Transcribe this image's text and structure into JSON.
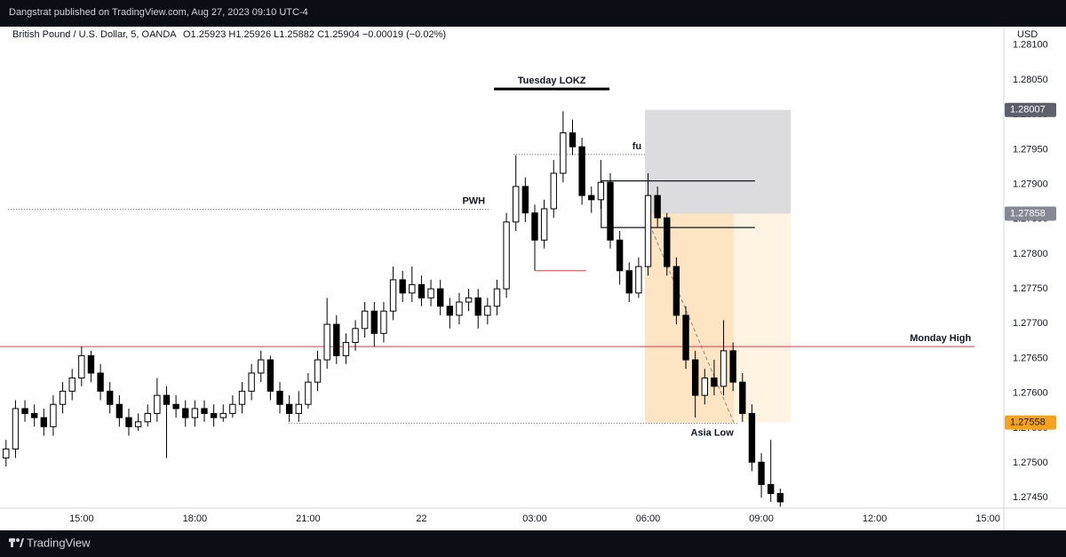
{
  "header": {
    "publisher": "Dangstrat published on TradingView.com, Aug 27, 2023 09:10 UTC-4"
  },
  "footer": {
    "brand": "TradingView"
  },
  "chart_data": {
    "type": "candlestick",
    "title": "British Pound / U.S. Dollar, 5, OANDA",
    "ohlc_legend": "O1.25923 H1.25926 L1.25882 C1.25904 −0.00019 (−0.02%)",
    "currency": "USD",
    "up_color": "#ffffff",
    "down_color": "#000000",
    "grid": false,
    "xlim": [
      12.84,
      39.42
    ],
    "ylim": [
      1.27435,
      1.28124
    ],
    "xticks": [
      {
        "value": 15,
        "label": "15:00"
      },
      {
        "value": 18,
        "label": "18:00"
      },
      {
        "value": 21,
        "label": "21:00"
      },
      {
        "value": 24,
        "label": "22"
      },
      {
        "value": 27,
        "label": "03:00"
      },
      {
        "value": 30,
        "label": "06:00"
      },
      {
        "value": 33,
        "label": "09:00"
      },
      {
        "value": 36,
        "label": "12:00"
      },
      {
        "value": 39,
        "label": "15:00"
      }
    ],
    "yticks": [
      {
        "value": 1.2745,
        "label": "1.27450"
      },
      {
        "value": 1.275,
        "label": "1.27500"
      },
      {
        "value": 1.2755,
        "label": "1.27550"
      },
      {
        "value": 1.276,
        "label": "1.27600"
      },
      {
        "value": 1.2765,
        "label": "1.27650"
      },
      {
        "value": 1.277,
        "label": "1.27700"
      },
      {
        "value": 1.2775,
        "label": "1.27750"
      },
      {
        "value": 1.278,
        "label": "1.27800"
      },
      {
        "value": 1.2785,
        "label": "1.27850"
      },
      {
        "value": 1.279,
        "label": "1.27900"
      },
      {
        "value": 1.2795,
        "label": "1.27950"
      },
      {
        "value": 1.28,
        "label": "1.28000"
      },
      {
        "value": 1.2805,
        "label": "1.28050"
      },
      {
        "value": 1.281,
        "label": "1.28100"
      }
    ],
    "x": [
      13,
      13.25,
      13.5,
      13.75,
      14,
      14.25,
      14.5,
      14.75,
      15,
      15.25,
      15.5,
      15.75,
      16,
      16.25,
      16.5,
      16.75,
      17,
      17.25,
      17.5,
      17.75,
      18,
      18.25,
      18.5,
      18.75,
      19,
      19.25,
      19.5,
      19.75,
      20,
      20.25,
      20.5,
      20.75,
      21,
      21.25,
      21.5,
      21.75,
      22,
      22.25,
      22.5,
      22.75,
      23,
      23.25,
      23.5,
      23.75,
      24,
      24.25,
      24.5,
      24.75,
      25,
      25.25,
      25.5,
      25.75,
      26,
      26.25,
      26.5,
      26.75,
      27,
      27.25,
      27.5,
      27.75,
      28,
      28.25,
      28.5,
      28.75,
      29,
      29.25,
      29.5,
      29.75,
      30,
      30.25,
      30.5,
      30.75,
      31,
      31.25,
      31.5,
      31.75,
      32,
      32.25,
      32.5,
      32.75,
      33,
      33.25,
      33.5
    ],
    "open": [
      1.27507,
      1.2752,
      1.27578,
      1.27571,
      1.27565,
      1.27552,
      1.27584,
      1.27603,
      1.27622,
      1.27654,
      1.27629,
      1.27603,
      1.27584,
      1.27565,
      1.27552,
      1.27559,
      1.27571,
      1.27597,
      1.27584,
      1.27578,
      1.27565,
      1.27578,
      1.27571,
      1.27565,
      1.27571,
      1.27584,
      1.27603,
      1.27629,
      1.27648,
      1.27603,
      1.27584,
      1.27571,
      1.27584,
      1.27616,
      1.27648,
      1.27699,
      1.27654,
      1.27673,
      1.27693,
      1.27718,
      1.27686,
      1.27718,
      1.27763,
      1.27744,
      1.27756,
      1.27737,
      1.2775,
      1.27725,
      1.27712,
      1.27731,
      1.27737,
      1.27712,
      1.27725,
      1.2775,
      1.27846,
      1.27897,
      1.27859,
      1.2782,
      1.27865,
      1.27916,
      1.27974,
      1.27954,
      1.27884,
      1.27878,
      1.27903,
      1.2782,
      1.27776,
      1.27744,
      1.27782,
      1.27884,
      1.27852,
      1.27782,
      1.27712,
      1.27648,
      1.27597,
      1.27622,
      1.2761,
      1.27661,
      1.27616,
      1.27571,
      1.27501,
      1.27469,
      1.27456
    ],
    "high": [
      1.27533,
      1.2759,
      1.2759,
      1.27584,
      1.27578,
      1.27597,
      1.27616,
      1.27635,
      1.27667,
      1.27661,
      1.27642,
      1.27616,
      1.27597,
      1.27578,
      1.27571,
      1.27584,
      1.27622,
      1.2761,
      1.27597,
      1.2759,
      1.2759,
      1.2759,
      1.27584,
      1.27584,
      1.27597,
      1.27616,
      1.27642,
      1.27661,
      1.27654,
      1.27616,
      1.27597,
      1.27603,
      1.27629,
      1.27661,
      1.27737,
      1.27712,
      1.27686,
      1.27705,
      1.27731,
      1.27731,
      1.27731,
      1.27782,
      1.27776,
      1.27782,
      1.27769,
      1.27763,
      1.27763,
      1.27737,
      1.27744,
      1.2775,
      1.2775,
      1.27737,
      1.27763,
      1.27859,
      1.27942,
      1.2791,
      1.27871,
      1.27878,
      1.27935,
      1.28005,
      1.27993,
      1.27967,
      1.27897,
      1.27935,
      1.27916,
      1.27833,
      1.27788,
      1.27795,
      1.27916,
      1.27897,
      1.27859,
      1.27795,
      1.27725,
      1.27661,
      1.27635,
      1.27648,
      1.27705,
      1.27673,
      1.27629,
      1.27584,
      1.27514,
      1.27533,
      1.27463
    ],
    "low": [
      1.27495,
      1.27507,
      1.27559,
      1.27552,
      1.27539,
      1.27539,
      1.27571,
      1.2759,
      1.2761,
      1.27616,
      1.2759,
      1.27571,
      1.27552,
      1.27539,
      1.27546,
      1.27552,
      1.27559,
      1.27507,
      1.27565,
      1.27552,
      1.27552,
      1.27559,
      1.27552,
      1.27559,
      1.27565,
      1.27571,
      1.2759,
      1.27616,
      1.2759,
      1.27571,
      1.27559,
      1.27559,
      1.27578,
      1.27603,
      1.27635,
      1.27642,
      1.27642,
      1.27661,
      1.2768,
      1.27667,
      1.27673,
      1.27705,
      1.27731,
      1.27731,
      1.27725,
      1.27725,
      1.27712,
      1.27693,
      1.27699,
      1.27718,
      1.27693,
      1.27699,
      1.27712,
      1.27737,
      1.27833,
      1.27846,
      1.27776,
      1.27808,
      1.27852,
      1.27903,
      1.27942,
      1.27871,
      1.27859,
      1.27865,
      1.27808,
      1.27756,
      1.27731,
      1.27737,
      1.27769,
      1.27839,
      1.27769,
      1.27699,
      1.27635,
      1.27565,
      1.27584,
      1.27597,
      1.27597,
      1.27603,
      1.27559,
      1.27488,
      1.2745,
      1.27444,
      1.27437
    ],
    "close": [
      1.2752,
      1.27578,
      1.27571,
      1.27565,
      1.27552,
      1.27584,
      1.27603,
      1.27622,
      1.27654,
      1.27629,
      1.27603,
      1.27584,
      1.27565,
      1.27552,
      1.27559,
      1.27571,
      1.27597,
      1.27584,
      1.27578,
      1.27565,
      1.27578,
      1.27571,
      1.27565,
      1.27571,
      1.27584,
      1.27603,
      1.27629,
      1.27648,
      1.27603,
      1.27584,
      1.27571,
      1.27584,
      1.27616,
      1.27648,
      1.27699,
      1.27654,
      1.27673,
      1.27693,
      1.27718,
      1.27686,
      1.27718,
      1.27763,
      1.27744,
      1.27756,
      1.27737,
      1.2775,
      1.27725,
      1.27712,
      1.27731,
      1.27737,
      1.27712,
      1.27725,
      1.2775,
      1.27846,
      1.27897,
      1.27859,
      1.2782,
      1.27865,
      1.27916,
      1.27974,
      1.27954,
      1.27884,
      1.27878,
      1.27903,
      1.2782,
      1.27776,
      1.27744,
      1.27782,
      1.27884,
      1.27852,
      1.27782,
      1.27712,
      1.27648,
      1.27597,
      1.27622,
      1.2761,
      1.27661,
      1.27616,
      1.27571,
      1.27501,
      1.27469,
      1.27456,
      1.27444
    ],
    "levels": [
      {
        "label": "PWH",
        "price": 1.27864,
        "start": 13.05,
        "end": 25.78,
        "color": "#555555",
        "style": "dotted",
        "label_pos": "above-end"
      },
      {
        "label": "Monday High",
        "price": 1.27667,
        "start": 12.84,
        "end": 38.65,
        "color": "#f23645",
        "style": "solid",
        "label_pos": "above-end"
      },
      {
        "label": "Asia Low",
        "price": 1.27557,
        "start": 20.48,
        "end": 32.36,
        "color": "#555555",
        "style": "dotted",
        "label_pos": "below-end"
      },
      {
        "label": "fu",
        "price": 1.27943,
        "start": 26.44,
        "end": 29.92,
        "color": "#555555",
        "style": "dotted",
        "label_pos": "above-end"
      },
      {
        "label": "Tuesday LOKZ",
        "price": 1.28037,
        "start": 25.92,
        "end": 28.98,
        "color": "#000000",
        "style": "thick",
        "label_pos": "above-middle"
      },
      {
        "price": 1.27776,
        "start": 27.02,
        "end": 28.36,
        "color": "#f23645",
        "style": "solid"
      }
    ],
    "zone": {
      "top": 1.27905,
      "bottom": 1.27838,
      "start": 28.76,
      "end": 32.83,
      "color": "#131722"
    },
    "position": {
      "stop": 1.28007,
      "entry": 1.27858,
      "target": 1.27558,
      "start": 29.92,
      "end": 33.78,
      "filled_end": 32.27,
      "stop_fill": "#dcdcdf",
      "target_fill": "#fff3e2",
      "filled_fill": "#fde4c2",
      "stop_label_color": "#5d606b",
      "entry_label_color": "#868993",
      "target_label_color": "#f7a21b"
    }
  }
}
